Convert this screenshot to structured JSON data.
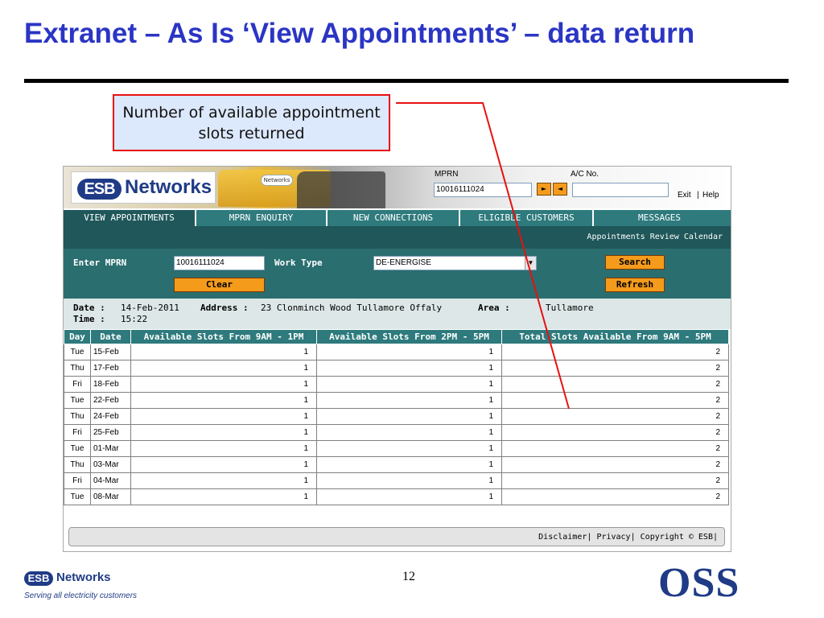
{
  "slide": {
    "title": "Extranet – As Is ‘View Appointments’ – data return",
    "callout": "Number of available appointment slots returned",
    "page_number": "12",
    "footer_brand": "Networks",
    "footer_badge": "ESB",
    "footer_tagline": "Serving all electricity customers",
    "footer_mark": "OSS"
  },
  "app": {
    "logo_badge": "ESB",
    "logo_text": "Networks",
    "van_logo": "Networks",
    "mprn_label": "MPRN",
    "mprn_value": "10016111024",
    "next_icon": "play-right-icon",
    "prev_icon": "play-left-icon",
    "acno_label": "A/C No.",
    "acno_value": "",
    "exit_link": "Exit",
    "help_link": "Help",
    "separator": "|"
  },
  "tabs": [
    {
      "label": "VIEW APPOINTMENTS",
      "active": true
    },
    {
      "label": "MPRN ENQUIRY",
      "active": false
    },
    {
      "label": "NEW CONNECTIONS",
      "active": false
    },
    {
      "label": "ELIGIBLE CUSTOMERS",
      "active": false
    },
    {
      "label": "MESSAGES",
      "active": false
    }
  ],
  "subbar": {
    "text": "Appointments Review Calendar"
  },
  "form": {
    "mprn_label": "Enter MPRN",
    "mprn_value": "10016111024",
    "worktype_label": "Work Type",
    "worktype_value": "DE-ENERGISE",
    "search_button": "Search",
    "clear_button": "Clear",
    "refresh_button": "Refresh"
  },
  "info": {
    "date_label": "Date :",
    "date_value": "14-Feb-2011",
    "time_label": "Time :",
    "time_value": "15:22",
    "address_label": "Address :",
    "address_value": "23 Clonminch Wood Tullamore Offaly",
    "area_label": "Area :",
    "area_value": "Tullamore"
  },
  "table": {
    "headers": [
      "Day",
      "Date",
      "Available Slots From 9AM - 1PM",
      "Available Slots From 2PM - 5PM",
      "Total Slots Available From 9AM - 5PM"
    ],
    "rows": [
      [
        "Tue",
        "15-Feb",
        "1",
        "1",
        "2"
      ],
      [
        "Thu",
        "17-Feb",
        "1",
        "1",
        "2"
      ],
      [
        "Fri",
        "18-Feb",
        "1",
        "1",
        "2"
      ],
      [
        "Tue",
        "22-Feb",
        "1",
        "1",
        "2"
      ],
      [
        "Thu",
        "24-Feb",
        "1",
        "1",
        "2"
      ],
      [
        "Fri",
        "25-Feb",
        "1",
        "1",
        "2"
      ],
      [
        "Tue",
        "01-Mar",
        "1",
        "1",
        "2"
      ],
      [
        "Thu",
        "03-Mar",
        "1",
        "1",
        "2"
      ],
      [
        "Fri",
        "04-Mar",
        "1",
        "1",
        "2"
      ],
      [
        "Tue",
        "08-Mar",
        "1",
        "1",
        "2"
      ]
    ]
  },
  "footer": {
    "disclaimer": "Disclaimer",
    "privacy": "Privacy",
    "copyright": "Copyright © ESB",
    "separator": "|"
  },
  "colors": {
    "title": "#2b35c4",
    "teal": "#2e7a7d",
    "teal_dark": "#1f575a",
    "orange_button": "#f59b1c",
    "callout_border": "#e81010",
    "callout_fill": "#dce8fb",
    "brand_blue": "#1f3b86"
  }
}
